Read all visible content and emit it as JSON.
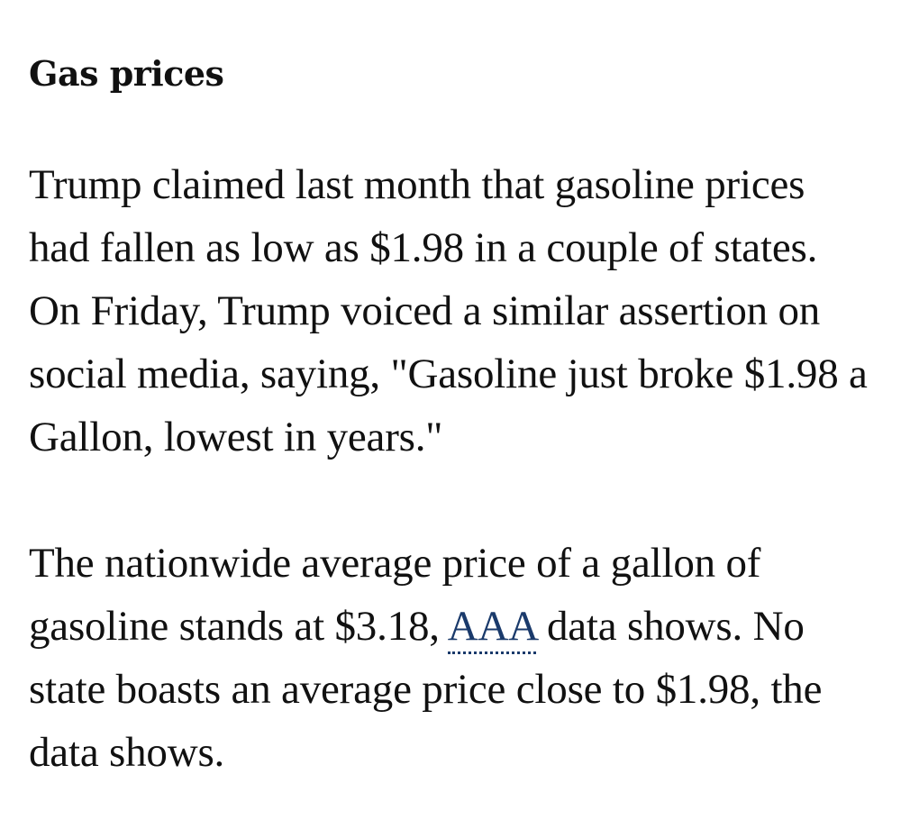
{
  "article": {
    "heading": "Gas prices",
    "paragraph1": "Trump claimed last month that gasoline prices had fallen as low as $1.98 in a couple of states. On Friday, Trump voiced a similar assertion on social media, saying, \"Gasoline just broke $1.98 a Gallon, lowest in years.\"",
    "paragraph2": {
      "before_link": "The nationwide average price of a gallon of gasoline stands at $3.18, ",
      "link_text": "AAA",
      "after_link": " data shows. No state boasts an average price close to $1.98, the data shows."
    }
  },
  "colors": {
    "text": "#111111",
    "link": "#1a3a6b",
    "background": "#ffffff"
  }
}
